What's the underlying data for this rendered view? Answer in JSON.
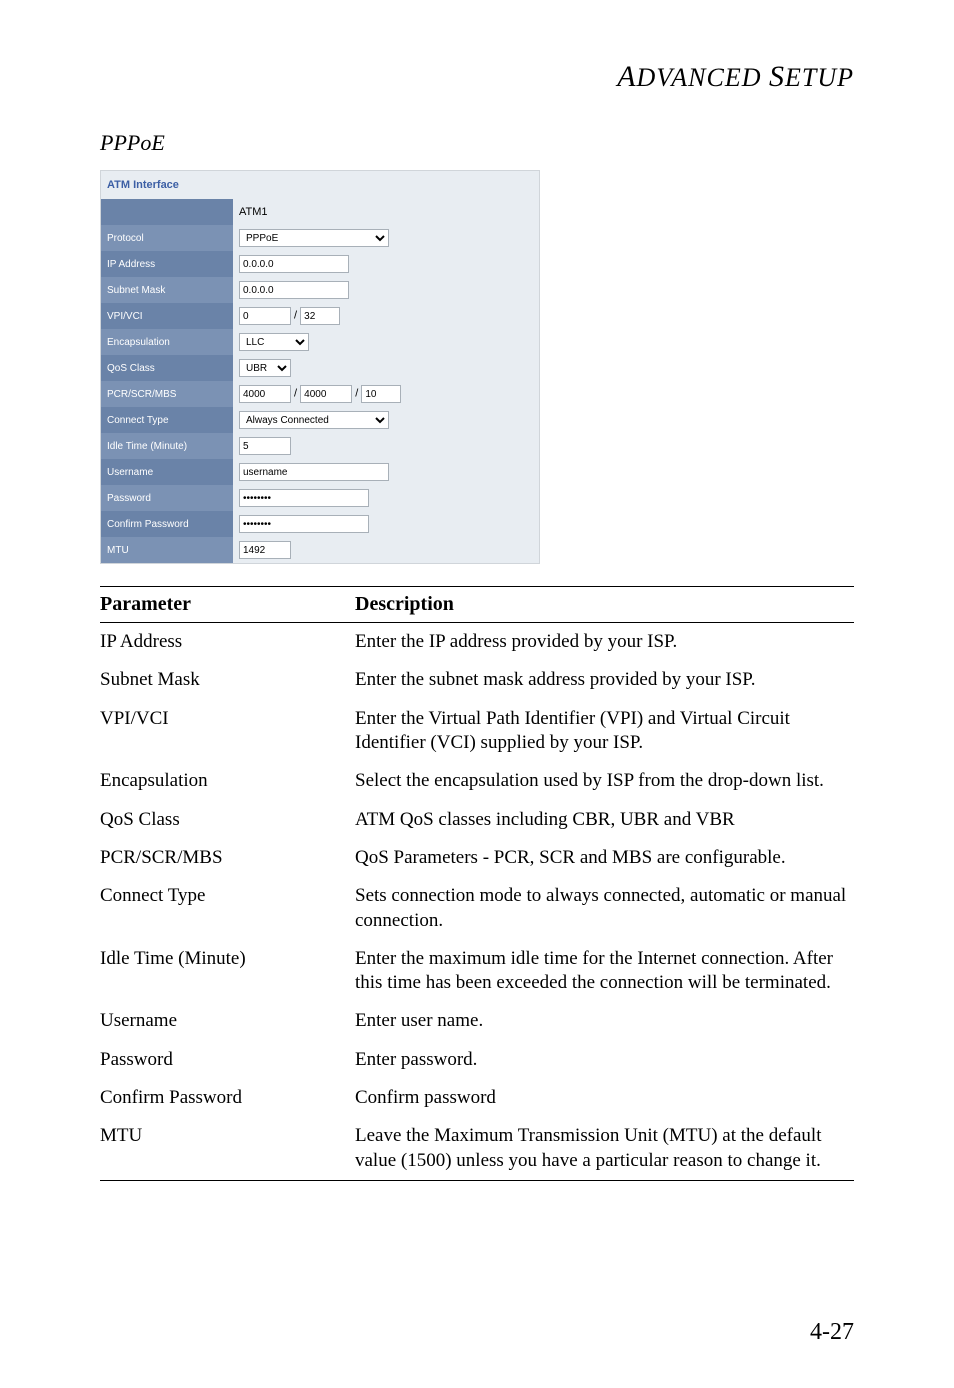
{
  "page": {
    "header": "ADVANCED SETUP",
    "section": "PPPoE",
    "pageNumber": "4-27"
  },
  "atm": {
    "title": "ATM Interface",
    "name": "ATM1",
    "labels": {
      "protocol": "Protocol",
      "ip": "IP Address",
      "subnet": "Subnet Mask",
      "vpivci": "VPI/VCI",
      "encap": "Encapsulation",
      "qos": "QoS Class",
      "pcr": "PCR/SCR/MBS",
      "connect": "Connect Type",
      "idle": "Idle Time (Minute)",
      "user": "Username",
      "pass": "Password",
      "confirm": "Confirm Password",
      "mtu": "MTU"
    },
    "values": {
      "protocol": "PPPoE",
      "ip": "0.0.0.0",
      "subnet": "0.0.0.0",
      "vpi": "0",
      "vci": "32",
      "encap": "LLC",
      "qos": "UBR",
      "pcr": "4000",
      "scr": "4000",
      "mbs": "10",
      "connect": "Always Connected",
      "idle": "5",
      "user": "username",
      "pass": "••••••••",
      "confirm": "••••••••",
      "mtu": "1492"
    }
  },
  "table": {
    "headers": {
      "param": "Parameter",
      "desc": "Description"
    },
    "rows": [
      {
        "p": "IP Address",
        "d": "Enter the IP address provided by your ISP."
      },
      {
        "p": "Subnet Mask",
        "d": "Enter the subnet mask address provided by your ISP."
      },
      {
        "p": "VPI/VCI",
        "d": "Enter the Virtual Path Identifier (VPI) and Virtual Circuit Identifier (VCI) supplied by your ISP."
      },
      {
        "p": "Encapsulation",
        "d": "Select the encapsulation used by ISP from the drop-down list."
      },
      {
        "p": "QoS Class",
        "d": "ATM QoS classes including CBR, UBR and VBR"
      },
      {
        "p": "PCR/SCR/MBS",
        "d": "QoS Parameters - PCR, SCR and MBS are configurable."
      },
      {
        "p": "Connect Type",
        "d": "Sets connection mode to always connected, automatic or manual connection."
      },
      {
        "p": "Idle Time (Minute)",
        "d": "Enter the maximum idle time for the Internet connection. After this time has been exceeded the connection will be terminated."
      },
      {
        "p": "Username",
        "d": "Enter user name."
      },
      {
        "p": "Password",
        "d": "Enter password."
      },
      {
        "p": "Confirm Password",
        "d": "Confirm password"
      },
      {
        "p": "MTU",
        "d": "Leave the Maximum Transmission Unit (MTU) at the default value (1500) unless you have a particular reason to change it."
      }
    ]
  }
}
